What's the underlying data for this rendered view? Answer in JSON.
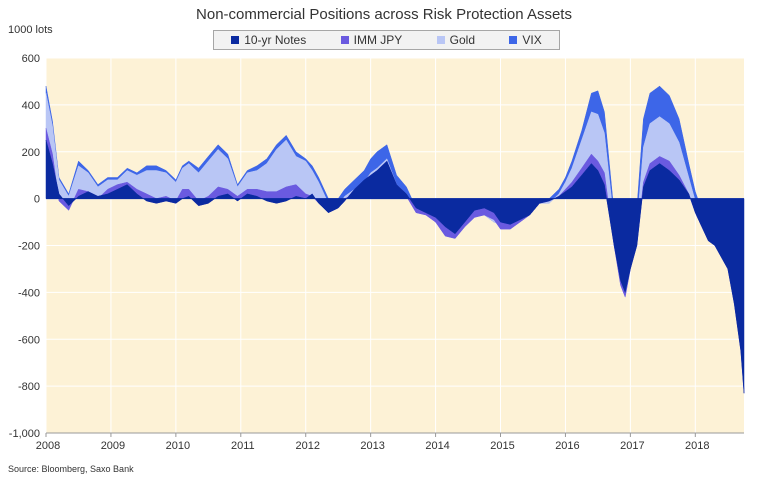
{
  "chart_data": {
    "type": "area",
    "title": "Non-commercial Positions across Risk Protection Assets",
    "ylabel": "1000 lots",
    "xlabel": "",
    "ylim": [
      -1000,
      600
    ],
    "yticks": [
      "600",
      "400",
      "200",
      "0",
      "-200",
      "-400",
      "-600",
      "-800",
      "-1,000"
    ],
    "ytick_values": [
      600,
      400,
      200,
      0,
      -200,
      -400,
      -600,
      -800,
      -1000
    ],
    "xticks": [
      "2008",
      "2009",
      "2010",
      "2011",
      "2012",
      "2013",
      "2014",
      "2015",
      "2016",
      "2017",
      "2018"
    ],
    "xlim": [
      2008.0,
      2018.75
    ],
    "source": "Source: Bloomberg, Saxo Bank",
    "stacking": "cumulative",
    "x": [
      2008.0,
      2008.1,
      2008.2,
      2008.35,
      2008.5,
      2008.65,
      2008.8,
      2008.95,
      2009.1,
      2009.25,
      2009.4,
      2009.55,
      2009.7,
      2009.85,
      2010.0,
      2010.1,
      2010.2,
      2010.35,
      2010.5,
      2010.65,
      2010.8,
      2010.95,
      2011.1,
      2011.25,
      2011.4,
      2011.55,
      2011.7,
      2011.85,
      2012.0,
      2012.1,
      2012.2,
      2012.35,
      2012.5,
      2012.6,
      2012.75,
      2012.9,
      2013.0,
      2013.1,
      2013.25,
      2013.4,
      2013.55,
      2013.7,
      2013.85,
      2014.0,
      2014.15,
      2014.3,
      2014.45,
      2014.6,
      2014.75,
      2014.9,
      2015.0,
      2015.15,
      2015.3,
      2015.45,
      2015.6,
      2015.75,
      2015.9,
      2016.0,
      2016.1,
      2016.25,
      2016.4,
      2016.5,
      2016.6,
      2016.75,
      2016.85,
      2016.92,
      2017.0,
      2017.1,
      2017.2,
      2017.3,
      2017.45,
      2017.6,
      2017.75,
      2017.9,
      2018.0,
      2018.1,
      2018.2,
      2018.3,
      2018.4,
      2018.5,
      2018.6,
      2018.7,
      2018.75
    ],
    "series": [
      {
        "name": "10-yr Notes",
        "color": "#0a2aa0",
        "values": [
          250,
          150,
          20,
          -30,
          10,
          30,
          10,
          20,
          40,
          60,
          20,
          -10,
          -20,
          -10,
          -20,
          0,
          10,
          -30,
          -20,
          10,
          20,
          -10,
          20,
          10,
          -10,
          -20,
          -10,
          10,
          0,
          20,
          -20,
          -60,
          -40,
          -10,
          40,
          80,
          100,
          120,
          160,
          60,
          20,
          -40,
          -60,
          -80,
          -120,
          -150,
          -100,
          -50,
          -40,
          -60,
          -100,
          -110,
          -90,
          -70,
          -20,
          -10,
          10,
          30,
          50,
          100,
          150,
          120,
          60,
          -200,
          -350,
          -400,
          -300,
          -200,
          50,
          120,
          150,
          120,
          80,
          20,
          -60,
          -120,
          -180,
          -200,
          -250,
          -300,
          -450,
          -650,
          -830
        ]
      },
      {
        "name": "IMM JPY",
        "color": "#6a5ae0",
        "values": [
          50,
          40,
          -30,
          -20,
          30,
          0,
          -10,
          20,
          20,
          10,
          20,
          30,
          20,
          20,
          10,
          40,
          30,
          20,
          30,
          40,
          20,
          20,
          20,
          30,
          40,
          50,
          60,
          50,
          20,
          -10,
          0,
          10,
          10,
          10,
          -20,
          -40,
          -30,
          -30,
          -20,
          -20,
          -10,
          -20,
          -10,
          -20,
          -40,
          -20,
          -20,
          -30,
          -30,
          -30,
          -30,
          -20,
          -10,
          0,
          0,
          0,
          0,
          10,
          20,
          30,
          40,
          40,
          50,
          0,
          -20,
          -20,
          0,
          10,
          20,
          30,
          30,
          40,
          20,
          0,
          0,
          0,
          10,
          10,
          10,
          10,
          20,
          20,
          10
        ]
      },
      {
        "name": "Gold",
        "color": "#b9c6f5",
        "values": [
          150,
          120,
          90,
          60,
          100,
          80,
          50,
          40,
          20,
          50,
          60,
          100,
          120,
          100,
          80,
          90,
          110,
          120,
          150,
          160,
          130,
          40,
          70,
          80,
          120,
          180,
          200,
          120,
          140,
          110,
          90,
          30,
          0,
          10,
          20,
          30,
          40,
          40,
          30,
          20,
          10,
          0,
          10,
          0,
          10,
          20,
          10,
          10,
          0,
          -10,
          20,
          30,
          20,
          10,
          0,
          -10,
          10,
          30,
          60,
          120,
          180,
          200,
          170,
          100,
          20,
          10,
          30,
          80,
          150,
          170,
          170,
          160,
          140,
          70,
          50,
          40,
          30,
          20,
          10,
          10,
          5,
          5,
          0
        ]
      },
      {
        "name": "VIX",
        "color": "#3d66e8",
        "values": [
          30,
          20,
          10,
          10,
          20,
          10,
          10,
          10,
          10,
          10,
          10,
          20,
          20,
          10,
          10,
          10,
          10,
          20,
          20,
          20,
          20,
          10,
          10,
          20,
          20,
          20,
          20,
          20,
          10,
          20,
          20,
          20,
          30,
          30,
          40,
          50,
          60,
          70,
          60,
          40,
          30,
          20,
          20,
          20,
          20,
          20,
          20,
          30,
          30,
          30,
          30,
          30,
          20,
          20,
          20,
          20,
          20,
          20,
          30,
          40,
          80,
          100,
          90,
          40,
          20,
          20,
          40,
          70,
          120,
          130,
          130,
          120,
          100,
          60,
          40,
          30,
          20,
          20,
          10,
          10,
          10,
          10,
          10
        ]
      }
    ],
    "colors": {
      "plot_background": "#fdf2d6",
      "gridline": "#ffffff",
      "zero_line": "#0a2aa0",
      "axis": "#999999"
    }
  }
}
